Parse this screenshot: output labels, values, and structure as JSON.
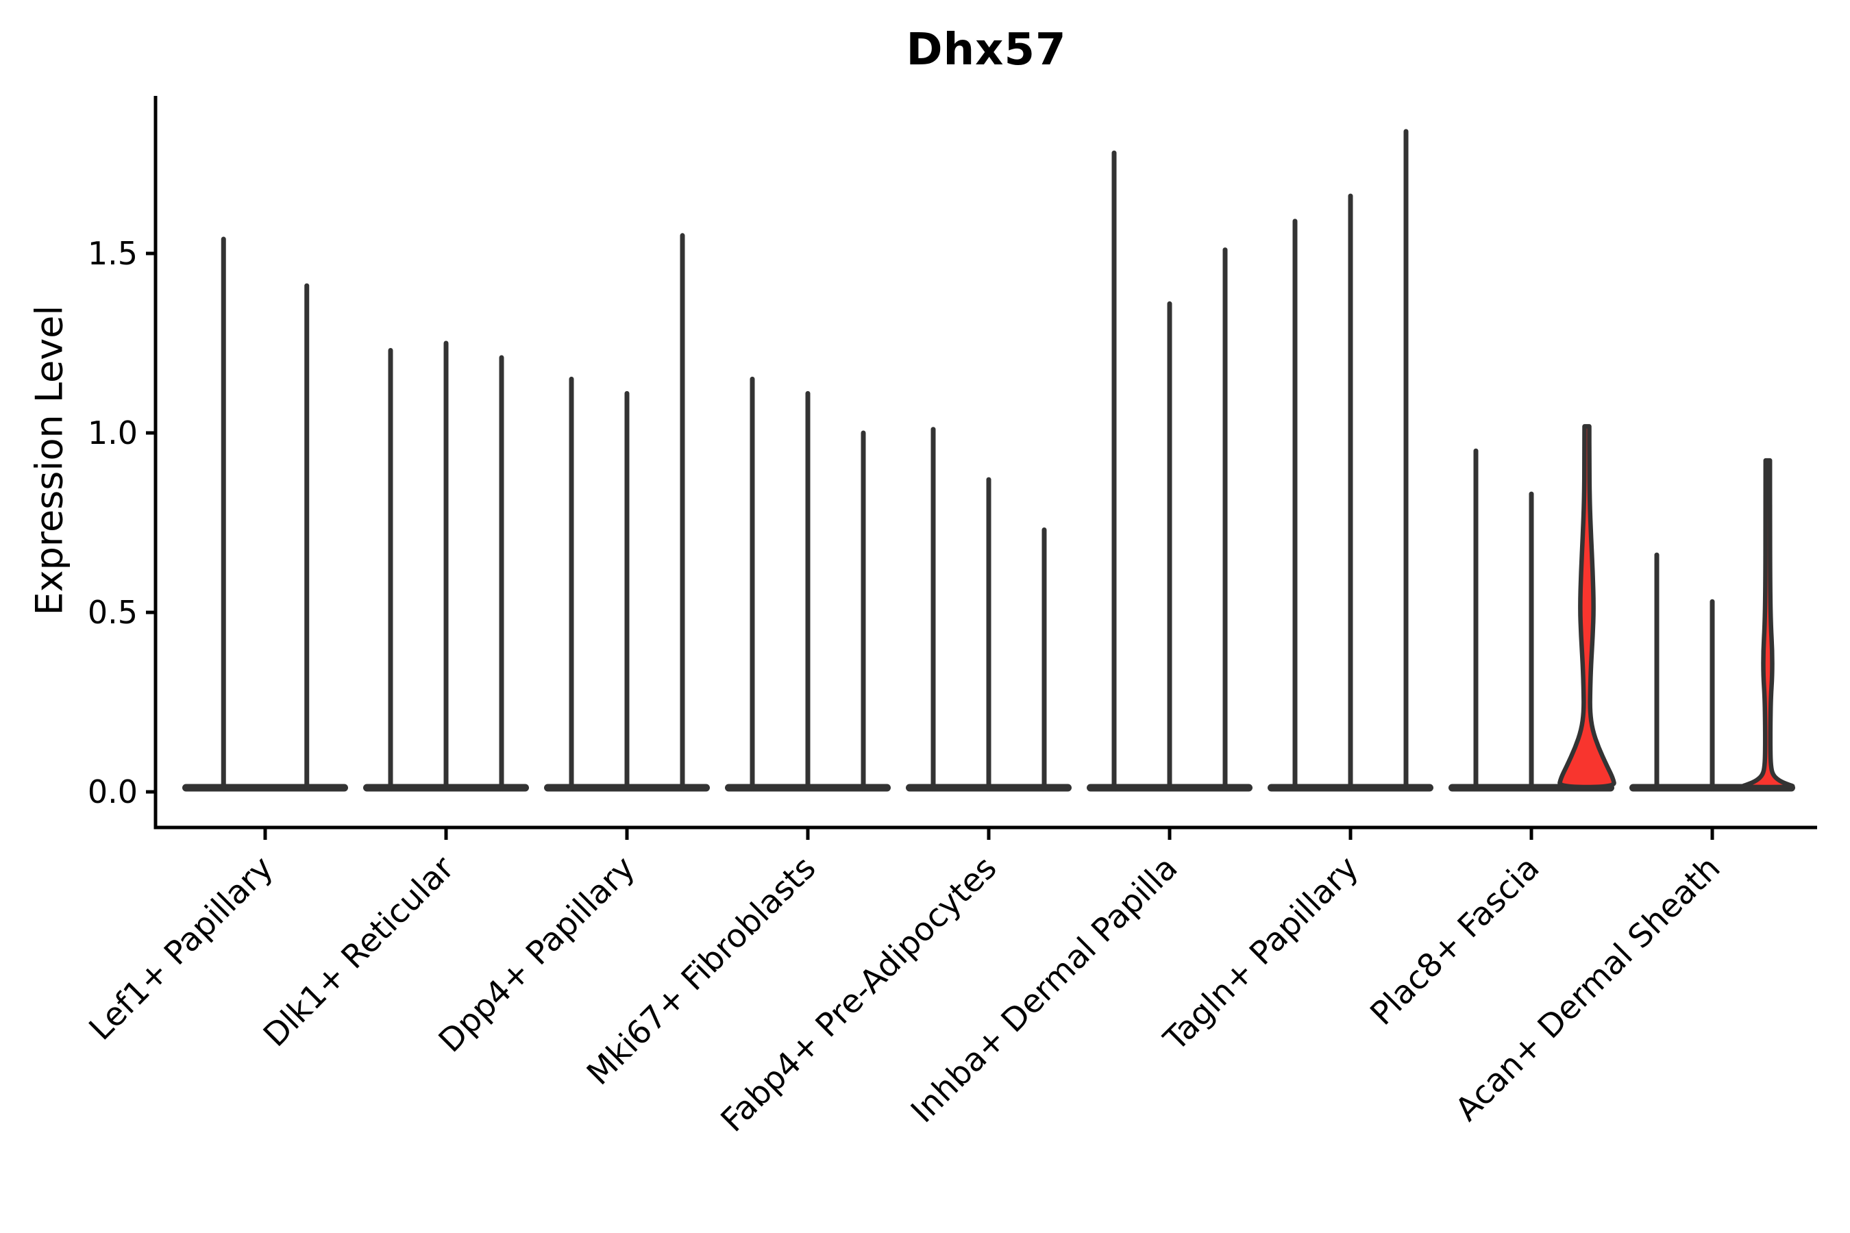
{
  "chart_data": {
    "type": "violin",
    "title": "Dhx57",
    "xlabel": "",
    "ylabel": "Expression Level",
    "ylim": [
      -0.1,
      1.95
    ],
    "yticks": [
      0.0,
      0.5,
      1.0,
      1.5
    ],
    "ytick_labels": [
      "0.0",
      "0.5",
      "1.0",
      "1.5"
    ],
    "grid": false,
    "legend": "none",
    "colors": {
      "violin_outline": "#333333",
      "highlight_fill": "#F8352E",
      "axis": "#000000",
      "background": "#ffffff"
    },
    "categories": [
      "Lef1+ Papillary",
      "Dlk1+ Reticular",
      "Dpp4+ Papillary",
      "Mki67+ Fibroblasts",
      "Fabp4+ Pre-Adipocytes",
      "Inhba+ Dermal Papilla",
      "Tagln+ Papillary",
      "Plac8+ Fascia",
      "Acan+ Dermal Sheath"
    ],
    "groups": [
      {
        "category": "Lef1+ Papillary",
        "violins": [
          {
            "max": 1.54
          },
          {
            "max": 1.41
          }
        ]
      },
      {
        "category": "Dlk1+ Reticular",
        "violins": [
          {
            "max": 1.23
          },
          {
            "max": 1.25
          },
          {
            "max": 1.21
          }
        ]
      },
      {
        "category": "Dpp4+ Papillary",
        "violins": [
          {
            "max": 1.15
          },
          {
            "max": 1.11
          },
          {
            "max": 1.55
          }
        ]
      },
      {
        "category": "Mki67+ Fibroblasts",
        "violins": [
          {
            "max": 1.15
          },
          {
            "max": 1.11
          },
          {
            "max": 1.0
          }
        ]
      },
      {
        "category": "Fabp4+ Pre-Adipocytes",
        "violins": [
          {
            "max": 1.01
          },
          {
            "max": 0.87
          },
          {
            "max": 0.73
          }
        ]
      },
      {
        "category": "Inhba+ Dermal Papilla",
        "violins": [
          {
            "max": 1.78
          },
          {
            "max": 1.36
          },
          {
            "max": 1.51
          }
        ]
      },
      {
        "category": "Tagln+ Papillary",
        "violins": [
          {
            "max": 1.59
          },
          {
            "max": 1.66
          },
          {
            "max": 1.84
          }
        ]
      },
      {
        "category": "Plac8+ Fascia",
        "violins": [
          {
            "max": 0.95
          },
          {
            "max": 0.83
          },
          {
            "max": 1.0,
            "highlighted": true,
            "profile": [
              [
                1.005,
                3.5
              ],
              [
                0.92,
                3.5
              ],
              [
                0.8,
                4.0
              ],
              [
                0.7,
                6.0
              ],
              [
                0.6,
                8.5
              ],
              [
                0.5,
                10.0
              ],
              [
                0.42,
                8.5
              ],
              [
                0.34,
                6.0
              ],
              [
                0.27,
                4.8
              ],
              [
                0.21,
                4.5
              ],
              [
                0.16,
                8.0
              ],
              [
                0.11,
                17.0
              ],
              [
                0.06,
                29.0
              ],
              [
                0.025,
                38.0
              ],
              [
                0.0,
                41.0
              ]
            ]
          }
        ]
      },
      {
        "category": "Acan+ Dermal Sheath",
        "violins": [
          {
            "max": 0.66
          },
          {
            "max": 0.53
          },
          {
            "max": 0.91,
            "highlighted": true,
            "profile": [
              [
                0.91,
                3.2
              ],
              [
                0.75,
                3.2
              ],
              [
                0.55,
                3.5
              ],
              [
                0.45,
                4.5
              ],
              [
                0.38,
                6.5
              ],
              [
                0.31,
                6.5
              ],
              [
                0.25,
                4.5
              ],
              [
                0.17,
                3.8
              ],
              [
                0.1,
                3.8
              ],
              [
                0.06,
                4.5
              ],
              [
                0.035,
                7.0
              ],
              [
                0.018,
                16.0
              ],
              [
                0.007,
                30.0
              ],
              [
                0.0,
                41.0
              ]
            ]
          }
        ]
      }
    ]
  }
}
